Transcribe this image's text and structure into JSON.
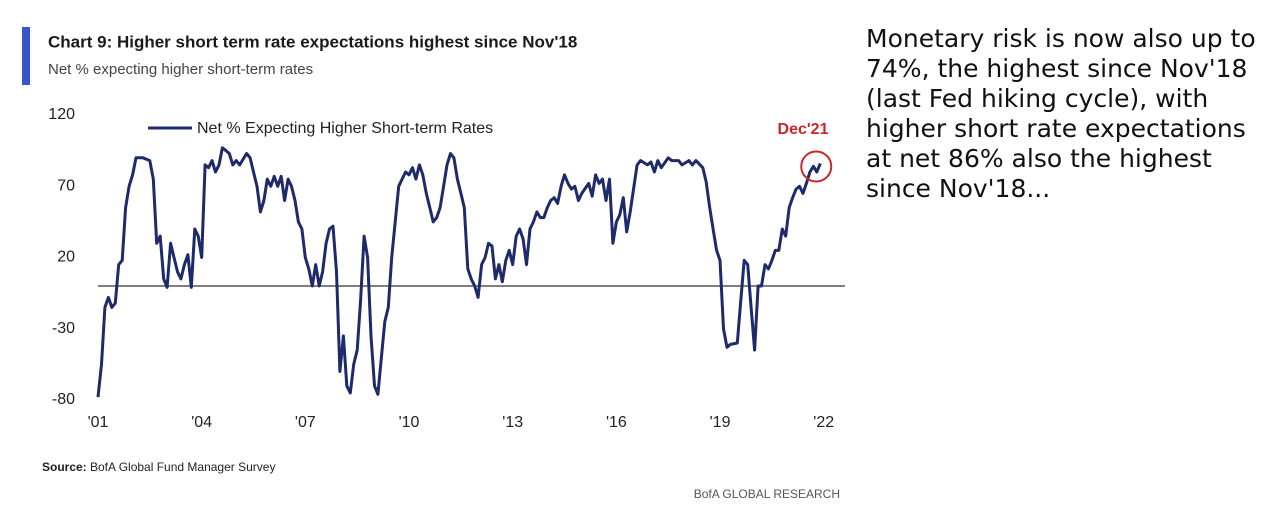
{
  "chart_data": {
    "type": "line",
    "title": "Chart 9: Higher short term rate expectations highest since Nov'18",
    "subtitle": "Net % expecting higher short-term rates",
    "annotation": "Dec'21",
    "source_label": "Source:",
    "source": "BofA Global Fund Manager Survey",
    "footer": "BofA GLOBAL RESEARCH",
    "xlim": [
      2001,
      2022.5
    ],
    "xticks": [
      {
        "value": 2001,
        "label": "'01"
      },
      {
        "value": 2004,
        "label": "'04"
      },
      {
        "value": 2007,
        "label": "'07"
      },
      {
        "value": 2010,
        "label": "'10"
      },
      {
        "value": 2013,
        "label": "'13"
      },
      {
        "value": 2016,
        "label": "'16"
      },
      {
        "value": 2019,
        "label": "'19"
      },
      {
        "value": 2022,
        "label": "'22"
      }
    ],
    "ylim": [
      -80,
      120
    ],
    "yticks": [
      -80,
      -30,
      20,
      70,
      120
    ],
    "x": [
      2001.0,
      2001.1,
      2001.2,
      2001.3,
      2001.4,
      2001.5,
      2001.6,
      2001.7,
      2001.8,
      2001.9,
      2002.0,
      2002.1,
      2002.3,
      2002.5,
      2002.6,
      2002.7,
      2002.8,
      2002.9,
      2003.0,
      2003.1,
      2003.2,
      2003.3,
      2003.4,
      2003.5,
      2003.6,
      2003.7,
      2003.8,
      2003.9,
      2004.0,
      2004.1,
      2004.2,
      2004.3,
      2004.4,
      2004.5,
      2004.6,
      2004.7,
      2004.8,
      2004.9,
      2005.0,
      2005.1,
      2005.3,
      2005.4,
      2005.5,
      2005.6,
      2005.7,
      2005.8,
      2005.9,
      2006.0,
      2006.1,
      2006.2,
      2006.3,
      2006.4,
      2006.5,
      2006.6,
      2006.7,
      2006.8,
      2006.9,
      2007.0,
      2007.1,
      2007.2,
      2007.3,
      2007.4,
      2007.5,
      2007.6,
      2007.7,
      2007.8,
      2007.9,
      2008.0,
      2008.1,
      2008.2,
      2008.3,
      2008.4,
      2008.5,
      2008.6,
      2008.7,
      2008.8,
      2008.9,
      2009.0,
      2009.1,
      2009.2,
      2009.3,
      2009.4,
      2009.5,
      2009.6,
      2009.7,
      2009.8,
      2009.9,
      2010.0,
      2010.1,
      2010.2,
      2010.3,
      2010.4,
      2010.5,
      2010.6,
      2010.7,
      2010.8,
      2010.9,
      2011.0,
      2011.1,
      2011.2,
      2011.3,
      2011.4,
      2011.5,
      2011.6,
      2011.7,
      2011.8,
      2011.9,
      2012.0,
      2012.1,
      2012.2,
      2012.3,
      2012.4,
      2012.5,
      2012.6,
      2012.7,
      2012.8,
      2012.9,
      2013.0,
      2013.1,
      2013.2,
      2013.3,
      2013.4,
      2013.5,
      2013.6,
      2013.7,
      2013.8,
      2013.9,
      2014.0,
      2014.1,
      2014.2,
      2014.3,
      2014.4,
      2014.5,
      2014.6,
      2014.7,
      2014.8,
      2014.9,
      2015.0,
      2015.2,
      2015.3,
      2015.4,
      2015.5,
      2015.6,
      2015.7,
      2015.8,
      2015.9,
      2016.0,
      2016.1,
      2016.2,
      2016.3,
      2016.4,
      2016.6,
      2016.7,
      2016.9,
      2017.0,
      2017.1,
      2017.2,
      2017.3,
      2017.5,
      2017.6,
      2017.8,
      2017.9,
      2018.1,
      2018.2,
      2018.3,
      2018.5,
      2018.6,
      2018.7,
      2018.8,
      2018.9,
      2019.0,
      2019.1,
      2019.2,
      2019.3,
      2019.5,
      2019.6,
      2019.7,
      2019.8,
      2019.9,
      2020.0,
      2020.1,
      2020.2,
      2020.3,
      2020.4,
      2020.5,
      2020.6,
      2020.7,
      2020.8,
      2020.9,
      2021.0,
      2021.1,
      2021.2,
      2021.3,
      2021.4,
      2021.5,
      2021.6,
      2021.7,
      2021.8,
      2021.9
    ],
    "series": [
      {
        "name": "Net % Expecting Higher Short-term Rates",
        "color": "#1f2a6b",
        "values": [
          -78,
          -55,
          -15,
          -8,
          -15,
          -12,
          15,
          18,
          55,
          70,
          78,
          90,
          90,
          88,
          75,
          30,
          35,
          5,
          -1,
          30,
          20,
          10,
          5,
          15,
          22,
          -1,
          40,
          35,
          20,
          85,
          83,
          88,
          80,
          85,
          97,
          95,
          93,
          85,
          88,
          85,
          93,
          90,
          80,
          70,
          52,
          60,
          75,
          70,
          77,
          70,
          77,
          60,
          75,
          70,
          60,
          45,
          40,
          20,
          12,
          0,
          15,
          0,
          10,
          30,
          40,
          42,
          10,
          -60,
          -35,
          -70,
          -75,
          -55,
          -45,
          -10,
          35,
          20,
          -35,
          -70,
          -76,
          -50,
          -25,
          -15,
          20,
          45,
          70,
          75,
          80,
          78,
          83,
          75,
          85,
          78,
          65,
          55,
          45,
          48,
          55,
          70,
          85,
          93,
          90,
          75,
          65,
          55,
          12,
          5,
          0,
          -8,
          15,
          20,
          30,
          28,
          5,
          15,
          3,
          18,
          25,
          15,
          35,
          40,
          33,
          15,
          40,
          45,
          52,
          48,
          48,
          55,
          60,
          62,
          58,
          70,
          78,
          72,
          68,
          70,
          60,
          65,
          72,
          63,
          78,
          72,
          75,
          60,
          75,
          30,
          45,
          50,
          62,
          38,
          52,
          85,
          88,
          85,
          87,
          80,
          88,
          83,
          90,
          88,
          88,
          85,
          88,
          85,
          88,
          83,
          73,
          55,
          40,
          25,
          18,
          -30,
          -43,
          -41,
          -40,
          -10,
          18,
          15,
          -15,
          -45,
          0,
          0,
          15,
          12,
          18,
          25,
          25,
          40,
          35,
          55,
          62,
          68,
          70,
          65,
          72,
          80,
          84,
          80,
          86
        ]
      }
    ]
  },
  "commentary": [
    "Monetary risk is now also up to",
    "74%, the highest since Nov'18",
    "(last Fed hiking cycle), with",
    "higher short rate expectations",
    "at net 86% also the highest",
    "since Nov'18..."
  ]
}
